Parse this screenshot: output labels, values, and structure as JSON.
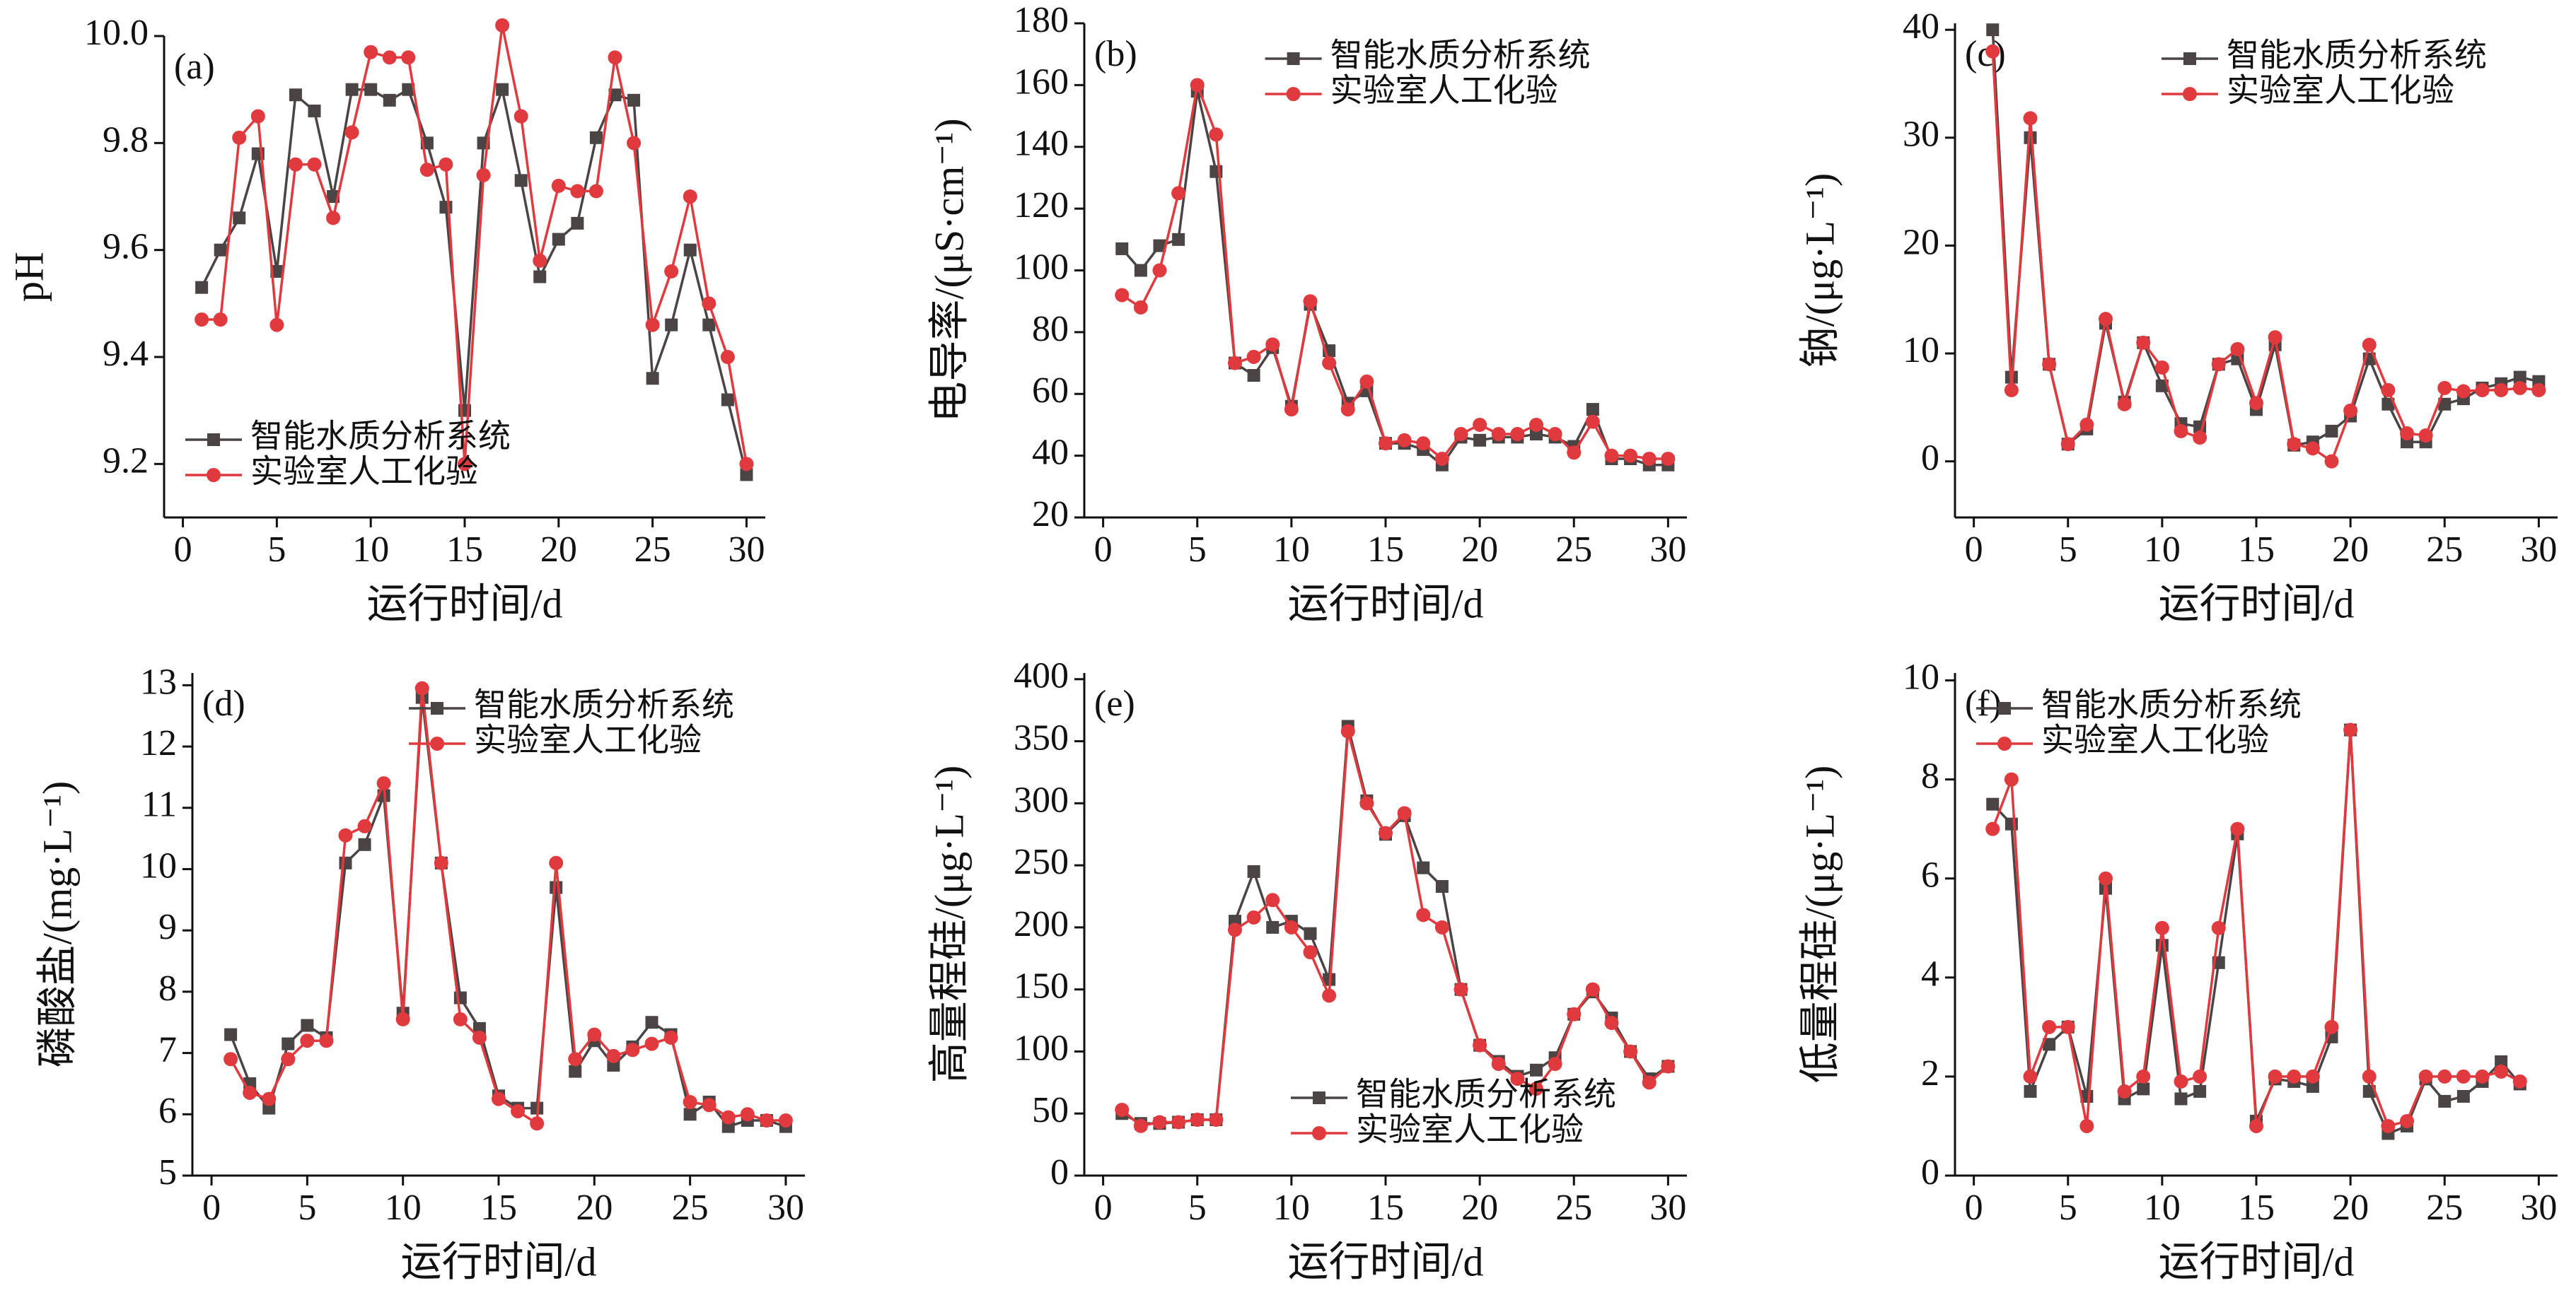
{
  "chart_data": [
    {
      "type": "line",
      "annotation": "(a)",
      "x_label": "运行时间/d",
      "y_label": "pH",
      "legend": "lower left",
      "x": [
        1,
        2,
        3,
        4,
        5,
        6,
        7,
        8,
        9,
        10,
        11,
        12,
        13,
        14,
        15,
        16,
        17,
        18,
        19,
        20,
        21,
        22,
        23,
        24,
        25,
        26,
        27,
        28,
        29,
        30
      ],
      "xlim": [
        -1,
        31
      ],
      "xticks": [
        0,
        5,
        10,
        15,
        20,
        25,
        30
      ],
      "ylim": [
        9.1,
        10.0
      ],
      "yticks": [
        9.2,
        9.4,
        9.6,
        9.8,
        {
          "value": 10,
          "label": "10.0"
        }
      ],
      "series": [
        {
          "name": "智能水质分析系统",
          "color": "#4a4444",
          "marker": "square",
          "values": [
            9.53,
            9.6,
            9.66,
            9.78,
            9.56,
            9.89,
            9.86,
            9.7,
            9.9,
            9.9,
            9.88,
            9.9,
            9.8,
            9.68,
            9.3,
            9.8,
            9.9,
            9.73,
            9.55,
            9.62,
            9.65,
            9.81,
            9.89,
            9.88,
            9.36,
            9.46,
            9.6,
            9.46,
            9.32,
            9.18
          ]
        },
        {
          "name": "实验室人工化验",
          "color": "#e0393e",
          "marker": "circle",
          "values": [
            9.47,
            9.47,
            9.81,
            9.85,
            9.46,
            9.76,
            9.76,
            9.66,
            9.82,
            9.97,
            9.96,
            9.96,
            9.75,
            9.76,
            9.2,
            9.74,
            10.02,
            9.85,
            9.58,
            9.72,
            9.71,
            9.71,
            9.96,
            9.8,
            9.46,
            9.56,
            9.7,
            9.5,
            9.4,
            9.2
          ]
        }
      ]
    },
    {
      "type": "line",
      "annotation": "(b)",
      "x_label": "运行时间/d",
      "y_label": "电导率/(μS·cm⁻¹)",
      "legend": "upper center",
      "x": [
        1,
        2,
        3,
        4,
        5,
        6,
        7,
        8,
        9,
        10,
        11,
        12,
        13,
        14,
        15,
        16,
        17,
        18,
        19,
        20,
        21,
        22,
        23,
        24,
        25,
        26,
        27,
        28,
        29,
        30
      ],
      "xlim": [
        -1,
        31
      ],
      "xticks": [
        0,
        5,
        10,
        15,
        20,
        25,
        30
      ],
      "ylim": [
        20,
        180
      ],
      "yticks": [
        20,
        40,
        60,
        80,
        100,
        120,
        140,
        160,
        180
      ],
      "series": [
        {
          "name": "智能水质分析系统",
          "color": "#4a4444",
          "marker": "square",
          "values": [
            107,
            100,
            108,
            110,
            158,
            132,
            70,
            66,
            75,
            56,
            89,
            74,
            57,
            61,
            44,
            44,
            42,
            37,
            46,
            45,
            46,
            46,
            47,
            46,
            43,
            55,
            39,
            39,
            37,
            37
          ]
        },
        {
          "name": "实验室人工化验",
          "color": "#e0393e",
          "marker": "circle",
          "values": [
            92,
            88,
            100,
            125,
            160,
            144,
            70,
            72,
            76,
            55,
            90,
            70,
            55,
            64,
            44,
            45,
            44,
            39,
            47,
            50,
            47,
            47,
            50,
            47,
            41,
            51,
            40,
            40,
            39,
            39
          ]
        }
      ]
    },
    {
      "type": "line",
      "annotation": "(c)",
      "x_label": "运行时间/d",
      "y_label": "钠/(μg·L⁻¹)",
      "legend": "upper right",
      "x": [
        1,
        2,
        3,
        4,
        5,
        6,
        7,
        8,
        9,
        10,
        11,
        12,
        13,
        14,
        15,
        16,
        17,
        18,
        19,
        20,
        21,
        22,
        23,
        24,
        25,
        26,
        27,
        28,
        29,
        30
      ],
      "xlim": [
        -1,
        31
      ],
      "xticks": [
        0,
        5,
        10,
        15,
        20,
        25,
        30
      ],
      "ylim": [
        -5.2,
        40.6
      ],
      "yticks": [
        0,
        10,
        20,
        30,
        40
      ],
      "series": [
        {
          "name": "智能水质分析系统",
          "color": "#4a4444",
          "marker": "square",
          "values": [
            40,
            7.8,
            30,
            9,
            1.6,
            3,
            12.8,
            5.5,
            11,
            7,
            3.5,
            3.2,
            9,
            9.5,
            4.8,
            10.8,
            1.5,
            1.8,
            2.8,
            4.2,
            9.5,
            5.3,
            1.8,
            1.8,
            5.3,
            5.8,
            6.8,
            7.2,
            7.8,
            7.4
          ]
        },
        {
          "name": "实验室人工化验",
          "color": "#e0393e",
          "marker": "circle",
          "values": [
            38,
            6.6,
            31.8,
            9,
            1.6,
            3.4,
            13.2,
            5.3,
            11,
            8.7,
            2.8,
            2.2,
            9,
            10.4,
            5.4,
            11.5,
            1.6,
            1.2,
            0,
            4.7,
            10.8,
            6.6,
            2.6,
            2.4,
            6.8,
            6.5,
            6.6,
            6.6,
            6.8,
            6.6
          ]
        }
      ]
    },
    {
      "type": "line",
      "annotation": "(d)",
      "x_label": "运行时间/d",
      "y_label": "磷酸盐/(mg·L⁻¹)",
      "legend": "upper right",
      "x": [
        1,
        2,
        3,
        4,
        5,
        6,
        7,
        8,
        9,
        10,
        11,
        12,
        13,
        14,
        15,
        16,
        17,
        18,
        19,
        20,
        21,
        22,
        23,
        24,
        25,
        26,
        27,
        28,
        29,
        30
      ],
      "xlim": [
        -1,
        31
      ],
      "xticks": [
        0,
        5,
        10,
        15,
        20,
        25,
        30
      ],
      "ylim": [
        5,
        13.2
      ],
      "yticks": [
        5,
        6,
        7,
        8,
        9,
        10,
        11,
        12,
        13
      ],
      "series": [
        {
          "name": "智能水质分析系统",
          "color": "#4a4444",
          "marker": "square",
          "values": [
            7.3,
            6.5,
            6.1,
            7.15,
            7.45,
            7.25,
            10.1,
            10.4,
            11.2,
            7.65,
            12.8,
            10.1,
            7.9,
            7.4,
            6.3,
            6.1,
            6.1,
            9.7,
            6.7,
            7.2,
            6.8,
            7.1,
            7.5,
            7.3,
            6.0,
            6.2,
            5.8,
            5.9,
            5.9,
            5.8
          ]
        },
        {
          "name": "实验室人工化验",
          "color": "#e0393e",
          "marker": "circle",
          "values": [
            6.9,
            6.35,
            6.25,
            6.9,
            7.2,
            7.2,
            10.55,
            10.7,
            11.4,
            7.55,
            12.95,
            10.1,
            7.55,
            7.25,
            6.25,
            6.05,
            5.85,
            10.1,
            6.9,
            7.3,
            6.95,
            7.05,
            7.15,
            7.25,
            6.2,
            6.15,
            5.95,
            6.0,
            5.9,
            5.9
          ]
        }
      ]
    },
    {
      "type": "line",
      "annotation": "(e)",
      "x_label": "运行时间/d",
      "y_label": "高量程硅/(μg·L⁻¹)",
      "legend": "lower right",
      "x": [
        1,
        2,
        3,
        4,
        5,
        6,
        7,
        8,
        9,
        10,
        11,
        12,
        13,
        14,
        15,
        16,
        17,
        18,
        19,
        20,
        21,
        22,
        23,
        24,
        25,
        26,
        27,
        28,
        29,
        30
      ],
      "xlim": [
        -1,
        31
      ],
      "xticks": [
        0,
        5,
        10,
        15,
        20,
        25,
        30
      ],
      "ylim": [
        0,
        405
      ],
      "yticks": [
        0,
        50,
        100,
        150,
        200,
        250,
        300,
        350,
        400
      ],
      "series": [
        {
          "name": "智能水质分析系统",
          "color": "#4a4444",
          "marker": "square",
          "values": [
            50,
            42,
            42,
            43,
            45,
            45,
            205,
            245,
            200,
            205,
            195,
            158,
            362,
            302,
            275,
            290,
            248,
            233,
            150,
            105,
            92,
            80,
            85,
            95,
            130,
            148,
            127,
            100,
            78,
            88
          ]
        },
        {
          "name": "实验室人工化验",
          "color": "#e0393e",
          "marker": "circle",
          "values": [
            53,
            40,
            43,
            43,
            45,
            45,
            198,
            208,
            222,
            200,
            180,
            145,
            358,
            300,
            276,
            292,
            210,
            200,
            150,
            105,
            90,
            78,
            70,
            90,
            130,
            150,
            123,
            100,
            75,
            88
          ]
        }
      ]
    },
    {
      "type": "line",
      "annotation": "(f)",
      "x_label": "运行时间/d",
      "y_label": "低量程硅/(μg·L⁻¹)",
      "legend": "upper left",
      "x": [
        1,
        2,
        3,
        4,
        5,
        6,
        7,
        8,
        9,
        10,
        11,
        12,
        13,
        14,
        15,
        16,
        17,
        18,
        19,
        20,
        21,
        22,
        23,
        24,
        25,
        26,
        27,
        28,
        29
      ],
      "xlim": [
        -1,
        31
      ],
      "xticks": [
        0,
        5,
        10,
        15,
        20,
        25,
        30
      ],
      "ylim": [
        0,
        10.15
      ],
      "yticks": [
        0,
        2,
        4,
        6,
        8,
        10
      ],
      "series": [
        {
          "name": "智能水质分析系统",
          "color": "#4a4444",
          "marker": "square",
          "values": [
            7.5,
            7.1,
            1.7,
            2.65,
            3.0,
            1.6,
            5.8,
            1.55,
            1.75,
            4.65,
            1.55,
            1.7,
            4.3,
            6.9,
            1.1,
            1.95,
            1.9,
            1.8,
            2.8,
            9.0,
            1.7,
            0.85,
            1.0,
            1.95,
            1.5,
            1.6,
            1.9,
            2.3,
            1.85
          ]
        },
        {
          "name": "实验室人工化验",
          "color": "#e0393e",
          "marker": "circle",
          "values": [
            7.0,
            8.0,
            2.0,
            3.0,
            3.0,
            1.0,
            6.0,
            1.7,
            2.0,
            5.0,
            1.9,
            2.0,
            5.0,
            7.0,
            1.0,
            2.0,
            2.0,
            2.0,
            3.0,
            9.0,
            2.0,
            1.0,
            1.1,
            2.0,
            2.0,
            2.0,
            2.0,
            2.1,
            1.9
          ]
        }
      ]
    }
  ]
}
